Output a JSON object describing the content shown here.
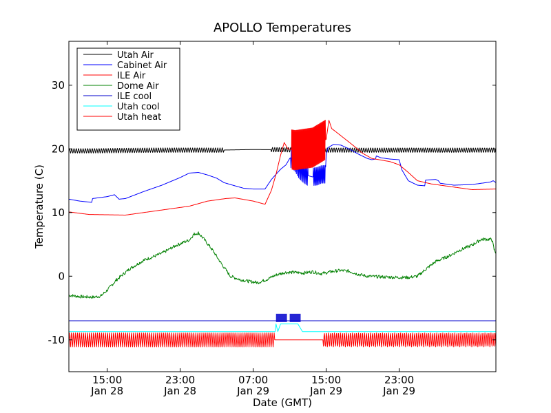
{
  "chart_data": {
    "type": "line",
    "title": "APOLLO Temperatures",
    "xlabel": "Date (GMT)",
    "ylabel": "Temperature (C)",
    "xlim_hours": [
      10.8,
      57.6
    ],
    "ylim": [
      -15.0,
      36.9
    ],
    "grid": false,
    "legend_position": "top-left",
    "yticks": [
      {
        "value": 30,
        "label": "30"
      },
      {
        "value": 20,
        "label": "20"
      },
      {
        "value": 10,
        "label": "10"
      },
      {
        "value": 0,
        "label": "0"
      },
      {
        "value": -10,
        "label": "-10"
      }
    ],
    "xticks": [
      {
        "hours": 15,
        "time": "15:00",
        "date": "Jan 28"
      },
      {
        "hours": 23,
        "time": "23:00",
        "date": "Jan 28"
      },
      {
        "hours": 31,
        "time": "07:00",
        "date": "Jan 29"
      },
      {
        "hours": 39,
        "time": "15:00",
        "date": "Jan 29"
      },
      {
        "hours": 47,
        "time": "23:00",
        "date": "Jan 29"
      }
    ],
    "series": [
      {
        "name": "Utah Air",
        "color": "#000000",
        "points": [
          [
            10.8,
            19.7
          ],
          [
            14.0,
            19.7
          ],
          [
            20.0,
            19.8
          ],
          [
            27.0,
            19.8
          ],
          [
            31.0,
            19.9
          ],
          [
            40.0,
            19.8
          ],
          [
            57.6,
            19.8
          ]
        ],
        "oscillation": {
          "amplitude": 0.35,
          "period_hours": 0.25,
          "ranges": [
            [
              10.8,
              27.8
            ],
            [
              33.0,
              57.6
            ]
          ]
        }
      },
      {
        "name": "Cabinet Air",
        "color": "#0000ff",
        "points": [
          [
            10.8,
            12.1
          ],
          [
            12.0,
            11.8
          ],
          [
            13.3,
            11.6
          ],
          [
            13.4,
            12.2
          ],
          [
            15.0,
            12.5
          ],
          [
            15.8,
            12.8
          ],
          [
            16.3,
            12.1
          ],
          [
            17.0,
            12.2
          ],
          [
            19.0,
            13.3
          ],
          [
            21.0,
            14.3
          ],
          [
            23.0,
            15.5
          ],
          [
            24.0,
            16.2
          ],
          [
            25.0,
            16.3
          ],
          [
            26.0,
            15.9
          ],
          [
            27.0,
            15.4
          ],
          [
            27.8,
            14.7
          ],
          [
            29.0,
            14.2
          ],
          [
            30.0,
            13.8
          ],
          [
            31.0,
            13.7
          ],
          [
            32.3,
            13.7
          ],
          [
            33.0,
            15.2
          ],
          [
            34.0,
            16.8
          ],
          [
            34.6,
            17.5
          ],
          [
            34.8,
            18.0
          ],
          [
            35.0,
            18.5
          ],
          [
            35.2,
            18.7
          ],
          [
            35.6,
            18.0
          ],
          [
            36.0,
            17.0
          ],
          [
            36.5,
            16.3
          ],
          [
            37.0,
            15.8
          ],
          [
            37.5,
            15.6
          ],
          [
            38.0,
            15.7
          ],
          [
            38.5,
            16.0
          ],
          [
            38.9,
            16.0
          ],
          [
            39.0,
            18.9
          ],
          [
            39.2,
            20.2
          ],
          [
            39.8,
            20.7
          ],
          [
            40.6,
            20.6
          ],
          [
            41.5,
            20.0
          ],
          [
            42.5,
            19.2
          ],
          [
            43.5,
            18.5
          ],
          [
            44.0,
            18.3
          ],
          [
            44.4,
            18.4
          ],
          [
            44.5,
            18.9
          ],
          [
            45.0,
            18.6
          ],
          [
            46.0,
            18.4
          ],
          [
            47.0,
            18.3
          ],
          [
            47.3,
            16.7
          ],
          [
            48.0,
            15.0
          ],
          [
            49.0,
            14.3
          ],
          [
            49.8,
            14.2
          ],
          [
            49.9,
            15.1
          ],
          [
            51.0,
            15.2
          ],
          [
            51.3,
            15.0
          ],
          [
            51.5,
            14.6
          ],
          [
            53.0,
            14.3
          ],
          [
            55.0,
            14.4
          ],
          [
            57.0,
            14.8
          ],
          [
            57.3,
            15.0
          ],
          [
            57.6,
            14.7
          ]
        ],
        "oscillation": {
          "amplitude": 1.6,
          "period_hours": 0.12,
          "ranges": [
            [
              35.1,
              37.0
            ],
            [
              37.6,
              38.9
            ]
          ]
        }
      },
      {
        "name": "ILE Air",
        "color": "#ff0000",
        "points": [
          [
            10.8,
            10.1
          ],
          [
            13.0,
            9.7
          ],
          [
            17.0,
            9.6
          ],
          [
            20.0,
            10.2
          ],
          [
            24.0,
            11.0
          ],
          [
            26.0,
            11.8
          ],
          [
            28.0,
            12.2
          ],
          [
            29.0,
            12.3
          ],
          [
            31.0,
            11.8
          ],
          [
            32.3,
            11.3
          ],
          [
            33.0,
            13.5
          ],
          [
            33.5,
            16.0
          ],
          [
            34.0,
            19.0
          ],
          [
            34.4,
            21.0
          ],
          [
            34.8,
            20.0
          ],
          [
            35.6,
            19.8
          ],
          [
            37.5,
            20.2
          ],
          [
            39.0,
            21.5
          ],
          [
            39.3,
            24.5
          ],
          [
            39.6,
            23.2
          ],
          [
            40.5,
            22.2
          ],
          [
            42.0,
            20.5
          ],
          [
            43.0,
            19.3
          ],
          [
            44.0,
            18.5
          ],
          [
            46.0,
            18.0
          ],
          [
            47.0,
            17.5
          ],
          [
            48.0,
            16.3
          ],
          [
            49.0,
            15.0
          ],
          [
            50.5,
            14.5
          ],
          [
            53.0,
            14.0
          ],
          [
            55.0,
            13.6
          ],
          [
            57.6,
            13.7
          ]
        ],
        "oscillation": {
          "amplitude": 3.1,
          "period_hours": 0.08,
          "ranges": [
            [
              35.2,
              38.9
            ]
          ]
        }
      },
      {
        "name": "Dome Air",
        "color": "#008000",
        "points": [
          [
            10.8,
            -3.0
          ],
          [
            12.0,
            -3.2
          ],
          [
            13.5,
            -3.3
          ],
          [
            14.3,
            -3.1
          ],
          [
            15.0,
            -2.2
          ],
          [
            16.0,
            -0.6
          ],
          [
            17.5,
            1.2
          ],
          [
            19.0,
            2.5
          ],
          [
            21.0,
            3.6
          ],
          [
            22.5,
            4.8
          ],
          [
            24.0,
            5.7
          ],
          [
            24.5,
            6.6
          ],
          [
            25.0,
            6.8
          ],
          [
            25.5,
            6.0
          ],
          [
            26.5,
            4.2
          ],
          [
            27.5,
            2.0
          ],
          [
            28.5,
            0.0
          ],
          [
            29.5,
            -0.5
          ],
          [
            30.5,
            -0.8
          ],
          [
            31.5,
            -1.0
          ],
          [
            32.5,
            -0.5
          ],
          [
            33.5,
            0.2
          ],
          [
            34.5,
            0.6
          ],
          [
            35.5,
            0.6
          ],
          [
            36.5,
            0.5
          ],
          [
            37.5,
            0.7
          ],
          [
            38.5,
            0.4
          ],
          [
            39.5,
            0.7
          ],
          [
            40.5,
            0.9
          ],
          [
            41.5,
            0.8
          ],
          [
            42.5,
            0.3
          ],
          [
            43.5,
            0.0
          ],
          [
            45.0,
            -0.1
          ],
          [
            47.0,
            -0.2
          ],
          [
            48.0,
            -0.2
          ],
          [
            49.0,
            0.0
          ],
          [
            50.0,
            1.2
          ],
          [
            51.0,
            2.3
          ],
          [
            52.5,
            3.2
          ],
          [
            53.5,
            4.0
          ],
          [
            55.0,
            4.9
          ],
          [
            56.0,
            5.8
          ],
          [
            57.0,
            5.8
          ],
          [
            57.2,
            5.6
          ],
          [
            57.4,
            4.2
          ],
          [
            57.6,
            3.7
          ]
        ],
        "noise": 0.25
      },
      {
        "name": "ILE cool",
        "color": "#0000cd",
        "points": [
          [
            10.8,
            -7.0
          ],
          [
            57.6,
            -7.0
          ]
        ],
        "blocks": [
          {
            "start": 33.5,
            "end": 34.7,
            "low": -7.2,
            "high": -5.9
          },
          {
            "start": 35.0,
            "end": 36.2,
            "low": -7.2,
            "high": -5.9
          }
        ]
      },
      {
        "name": "Utah cool",
        "color": "#00ffff",
        "points": [
          [
            10.8,
            -8.7
          ],
          [
            33.0,
            -8.7
          ],
          [
            33.4,
            -8.7
          ],
          [
            33.5,
            -7.5
          ],
          [
            33.7,
            -8.7
          ],
          [
            34.0,
            -7.5
          ],
          [
            35.9,
            -7.5
          ],
          [
            36.4,
            -8.7
          ],
          [
            57.6,
            -8.7
          ]
        ]
      },
      {
        "name": "Utah heat",
        "color": "#ff0000",
        "points": [
          [
            10.8,
            -10.0
          ],
          [
            57.6,
            -10.0
          ]
        ],
        "oscillation": {
          "amplitude": 1.1,
          "period_hours": 0.22,
          "ranges": [
            [
              10.8,
              33.3
            ],
            [
              38.7,
              57.6
            ]
          ]
        }
      }
    ]
  }
}
